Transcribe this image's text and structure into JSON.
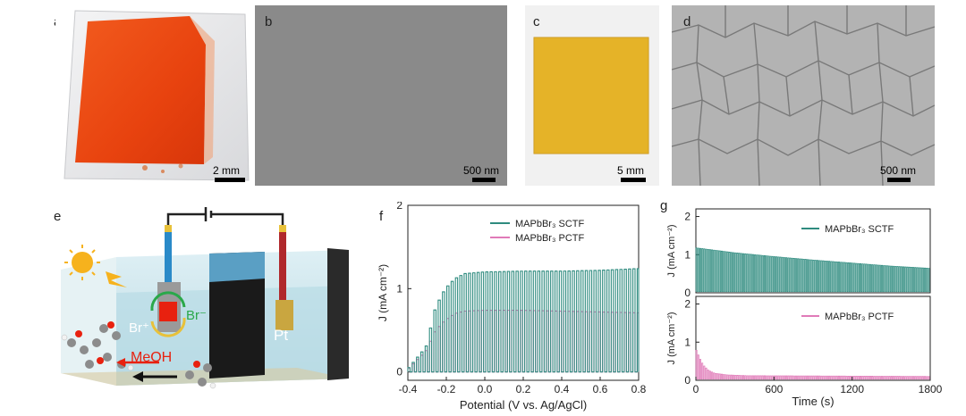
{
  "panels": {
    "a": {
      "label": "a",
      "scale": "2 mm",
      "colors": {
        "crystal": "#e8430f",
        "glass": "#e9eaec"
      }
    },
    "b": {
      "label": "b",
      "scale": "500 nm",
      "colors": {
        "bg": "#8a8a8a"
      }
    },
    "c": {
      "label": "c",
      "scale": "5 mm",
      "colors": {
        "film": "#e2ac1c"
      }
    },
    "d": {
      "label": "d",
      "scale": "500 nm",
      "colors": {
        "bg": "#b3b3b3"
      }
    },
    "e": {
      "label": "e",
      "text": {
        "br_plus": "Br⁺",
        "br_minus": "Br⁻",
        "meoh": "MeOH",
        "pt": "Pt"
      },
      "colors": {
        "arrow_red": "#e8210f",
        "br_minus": "#2aa84a",
        "water": "#bfe0ea",
        "sun": "#f6b21d"
      }
    }
  },
  "charts": {
    "f": {
      "label": "f",
      "xlabel": "Potential (V vs. Ag/AgCl)",
      "ylabel": "J (mA cm⁻²)",
      "legend": [
        "MAPbBr₃ SCTF",
        "MAPbBr₃ PCTF"
      ]
    },
    "g": {
      "label": "g",
      "xlabel": "Time (s)",
      "ylabel": "J (mA cm⁻²)",
      "legend_top": "MAPbBr₃ SCTF",
      "legend_bottom": "MAPbBr₃ PCTF"
    }
  },
  "chart_data": [
    {
      "type": "line",
      "panel": "f",
      "xlabel": "Potential (V vs. Ag/AgCl)",
      "ylabel": "J (mA cm⁻²)",
      "xlim": [
        -0.4,
        0.8
      ],
      "ylim": [
        -0.1,
        2
      ],
      "xticks": [
        "-0.4",
        "-0.2",
        "0.0",
        "0.2",
        "0.4",
        "0.6",
        "0.8"
      ],
      "yticks": [
        "0",
        "1",
        "2"
      ],
      "note": "chopped-light linear sweep; values are light-on photocurrent envelope",
      "series": [
        {
          "name": "MAPbBr₃ SCTF",
          "color": "#2e8b7f",
          "x": [
            -0.4,
            -0.3,
            -0.25,
            -0.2,
            -0.15,
            -0.1,
            0.0,
            0.2,
            0.4,
            0.6,
            0.8
          ],
          "y": [
            0.02,
            0.3,
            0.78,
            1.0,
            1.12,
            1.18,
            1.2,
            1.21,
            1.21,
            1.22,
            1.24
          ]
        },
        {
          "name": "MAPbBr₃ PCTF",
          "color": "#e07ab8",
          "x": [
            -0.4,
            -0.3,
            -0.25,
            -0.2,
            -0.15,
            -0.1,
            0.0,
            0.2,
            0.4,
            0.6,
            0.8
          ],
          "y": [
            0.02,
            0.25,
            0.5,
            0.62,
            0.7,
            0.73,
            0.74,
            0.74,
            0.73,
            0.72,
            0.71
          ]
        }
      ]
    },
    {
      "type": "line",
      "panel": "g-top",
      "xlim": [
        0,
        1800
      ],
      "ylim": [
        0,
        2.2
      ],
      "yticks": [
        "0",
        "1",
        "2"
      ],
      "series": [
        {
          "name": "MAPbBr₃ SCTF",
          "color": "#2e8b7f",
          "x": [
            0,
            300,
            600,
            900,
            1200,
            1500,
            1800
          ],
          "y": [
            1.18,
            1.05,
            0.95,
            0.86,
            0.78,
            0.7,
            0.64
          ]
        }
      ]
    },
    {
      "type": "line",
      "panel": "g-bottom",
      "xlim": [
        0,
        1800
      ],
      "ylim": [
        0,
        2.2
      ],
      "xlabel": "Time (s)",
      "xticks": [
        "0",
        "600",
        "1200",
        "1800"
      ],
      "yticks": [
        "0",
        "1",
        "2"
      ],
      "series": [
        {
          "name": "MAPbBr₃ PCTF",
          "color": "#e07ab8",
          "x": [
            0,
            30,
            60,
            100,
            150,
            250,
            400,
            1800
          ],
          "y": [
            0.85,
            0.6,
            0.4,
            0.26,
            0.18,
            0.14,
            0.12,
            0.1
          ]
        }
      ]
    }
  ]
}
